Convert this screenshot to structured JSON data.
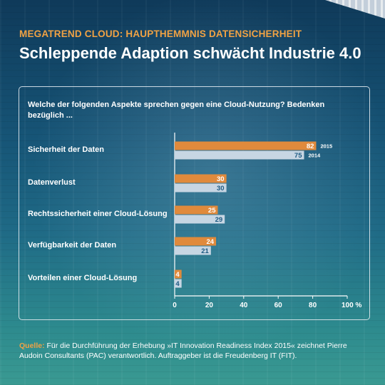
{
  "header": {
    "supertitle": "MEGATREND CLOUD: HAUPTHEMMNIS DATENSICHERHEIT",
    "title": "Schleppende Adaption schwächt Industrie 4.0"
  },
  "source": {
    "label": "Quelle:",
    "text": "Für die Durchführung der Erhebung »IT Innovation Readiness Index 2015« zeichnet Pierre Audoin Consultants (PAC) verantwortlich. Auftraggeber ist die Freudenberg IT (FIT)."
  },
  "colors": {
    "series_2015": "#e08a3c",
    "series_2014": "#c7d6e3",
    "value_2015_text": "#ffffff",
    "value_2014_text": "#1d5a82",
    "accent": "#f0a244"
  },
  "chart_data": {
    "type": "bar",
    "orientation": "horizontal",
    "question": "Welche der folgenden Aspekte sprechen gegen eine Cloud-Nutzung? Bedenken bezüglich ...",
    "categories": [
      "Sicherheit der Daten",
      "Datenverlust",
      "Rechtssicherheit einer Cloud-Lösung",
      "Verfügbarkeit der Daten",
      "Vorteilen einer Cloud-Lösung"
    ],
    "series": [
      {
        "name": "2015",
        "values": [
          82,
          30,
          25,
          24,
          4
        ]
      },
      {
        "name": "2014",
        "values": [
          75,
          30,
          29,
          21,
          4
        ]
      }
    ],
    "xlim": [
      0,
      100
    ],
    "xticks": [
      "0",
      "20",
      "40",
      "60",
      "80",
      "100 %"
    ],
    "xtick_values": [
      0,
      20,
      40,
      60,
      80,
      100
    ],
    "legend_placement": "inline next to first category bars",
    "grid": false
  }
}
